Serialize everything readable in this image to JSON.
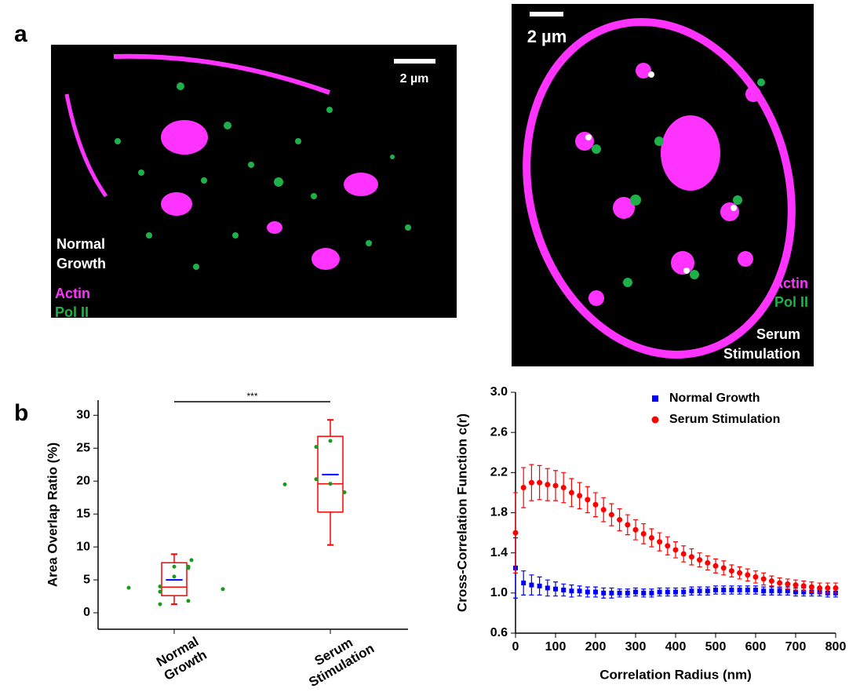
{
  "panel_labels": [
    "a",
    "b"
  ],
  "images": [
    {
      "scale_bar": "2 µm",
      "condition": "Normal Growth",
      "channels": [
        {
          "name": "Actin",
          "color": "#ff33ff"
        },
        {
          "name": "Pol II",
          "color": "#1fb04a"
        }
      ]
    },
    {
      "scale_bar": "2 µm",
      "condition": "Serum Stimulation",
      "channels": [
        {
          "name": "Actin",
          "color": "#ff33ff"
        },
        {
          "name": "Pol II",
          "color": "#1fb04a"
        }
      ]
    }
  ],
  "chart_data": [
    {
      "type": "box",
      "ylabel": "Area Overlap Ratio (%)",
      "categories": [
        "Normal Growth",
        "Serum Stimulation"
      ],
      "whisker_low": [
        1.3,
        10.3
      ],
      "q1": [
        2.6,
        15.3
      ],
      "median": [
        3.9,
        19.6
      ],
      "q3": [
        7.6,
        26.8
      ],
      "whisker_high": [
        8.9,
        29.3
      ],
      "mean": [
        5.0,
        21.0
      ],
      "points": [
        [
          3.8,
          7.0,
          1.3,
          4.0,
          6.8,
          5.5,
          7.0,
          8.0,
          1.8,
          3.2,
          3.6
        ],
        [
          19.5,
          26.1,
          25.2,
          20.3,
          18.3,
          19.6
        ]
      ],
      "box_color": "#ff0000",
      "mean_color": "#0000ff",
      "point_color": "#1a9a1a",
      "significance": "***",
      "ylim": [
        -2.5,
        32.3
      ],
      "yticks": [
        0,
        5,
        10,
        15,
        20,
        25,
        30
      ]
    },
    {
      "type": "scatter",
      "xlabel": "Correlation Radius (nm)",
      "ylabel": "Cross-Correlation Function c(r)",
      "x": [
        0,
        20,
        40,
        60,
        80,
        100,
        120,
        140,
        160,
        180,
        200,
        220,
        240,
        260,
        280,
        300,
        320,
        340,
        360,
        380,
        400,
        420,
        440,
        460,
        480,
        500,
        520,
        540,
        560,
        580,
        600,
        620,
        640,
        660,
        680,
        700,
        720,
        740,
        760,
        780,
        800
      ],
      "series": [
        {
          "name": "Normal Growth",
          "color": "#0000ff",
          "marker": "square",
          "values": [
            1.25,
            1.1,
            1.08,
            1.07,
            1.05,
            1.04,
            1.03,
            1.02,
            1.02,
            1.01,
            1.01,
            1.0,
            1.0,
            1.0,
            1.0,
            1.01,
            1.0,
            1.0,
            1.01,
            1.01,
            1.01,
            1.01,
            1.02,
            1.02,
            1.02,
            1.03,
            1.03,
            1.03,
            1.03,
            1.03,
            1.03,
            1.02,
            1.02,
            1.02,
            1.02,
            1.01,
            1.01,
            1.01,
            1.01,
            1.0,
            1.0
          ],
          "errors": [
            0.3,
            0.12,
            0.1,
            0.09,
            0.08,
            0.07,
            0.06,
            0.06,
            0.05,
            0.05,
            0.05,
            0.05,
            0.05,
            0.04,
            0.04,
            0.04,
            0.04,
            0.04,
            0.04,
            0.04,
            0.04,
            0.04,
            0.04,
            0.04,
            0.04,
            0.04,
            0.04,
            0.04,
            0.04,
            0.04,
            0.04,
            0.04,
            0.04,
            0.04,
            0.04,
            0.04,
            0.04,
            0.04,
            0.04,
            0.04,
            0.04
          ]
        },
        {
          "name": "Serum Stimulation",
          "color": "#ff0000",
          "marker": "circle",
          "values": [
            1.6,
            2.05,
            2.1,
            2.1,
            2.08,
            2.07,
            2.05,
            2.0,
            1.97,
            1.93,
            1.88,
            1.83,
            1.78,
            1.73,
            1.68,
            1.63,
            1.59,
            1.55,
            1.51,
            1.47,
            1.43,
            1.39,
            1.36,
            1.33,
            1.3,
            1.27,
            1.25,
            1.22,
            1.2,
            1.18,
            1.16,
            1.14,
            1.12,
            1.1,
            1.09,
            1.08,
            1.07,
            1.06,
            1.05,
            1.05,
            1.05
          ],
          "errors": [
            0.4,
            0.2,
            0.18,
            0.17,
            0.16,
            0.15,
            0.15,
            0.14,
            0.13,
            0.13,
            0.12,
            0.12,
            0.11,
            0.11,
            0.1,
            0.1,
            0.1,
            0.09,
            0.09,
            0.09,
            0.08,
            0.08,
            0.08,
            0.07,
            0.07,
            0.07,
            0.07,
            0.06,
            0.06,
            0.06,
            0.06,
            0.06,
            0.05,
            0.05,
            0.05,
            0.05,
            0.05,
            0.05,
            0.05,
            0.05,
            0.05
          ]
        }
      ],
      "legend": "upper right",
      "xlim": [
        0,
        800
      ],
      "xticks": [
        0,
        100,
        200,
        300,
        400,
        500,
        600,
        700,
        800
      ],
      "ylim": [
        0.6,
        3.0
      ],
      "yticks": [
        {
          "value": 0.6,
          "label": "0.6"
        },
        {
          "value": 1.0,
          "label": "1.0"
        },
        {
          "value": 1.4,
          "label": "1.4"
        },
        {
          "value": 1.8,
          "label": "1.8"
        },
        {
          "value": 2.2,
          "label": "2.2"
        },
        {
          "value": 2.6,
          "label": "2.6"
        },
        {
          "value": 3.0,
          "label": "3.0"
        }
      ]
    }
  ]
}
